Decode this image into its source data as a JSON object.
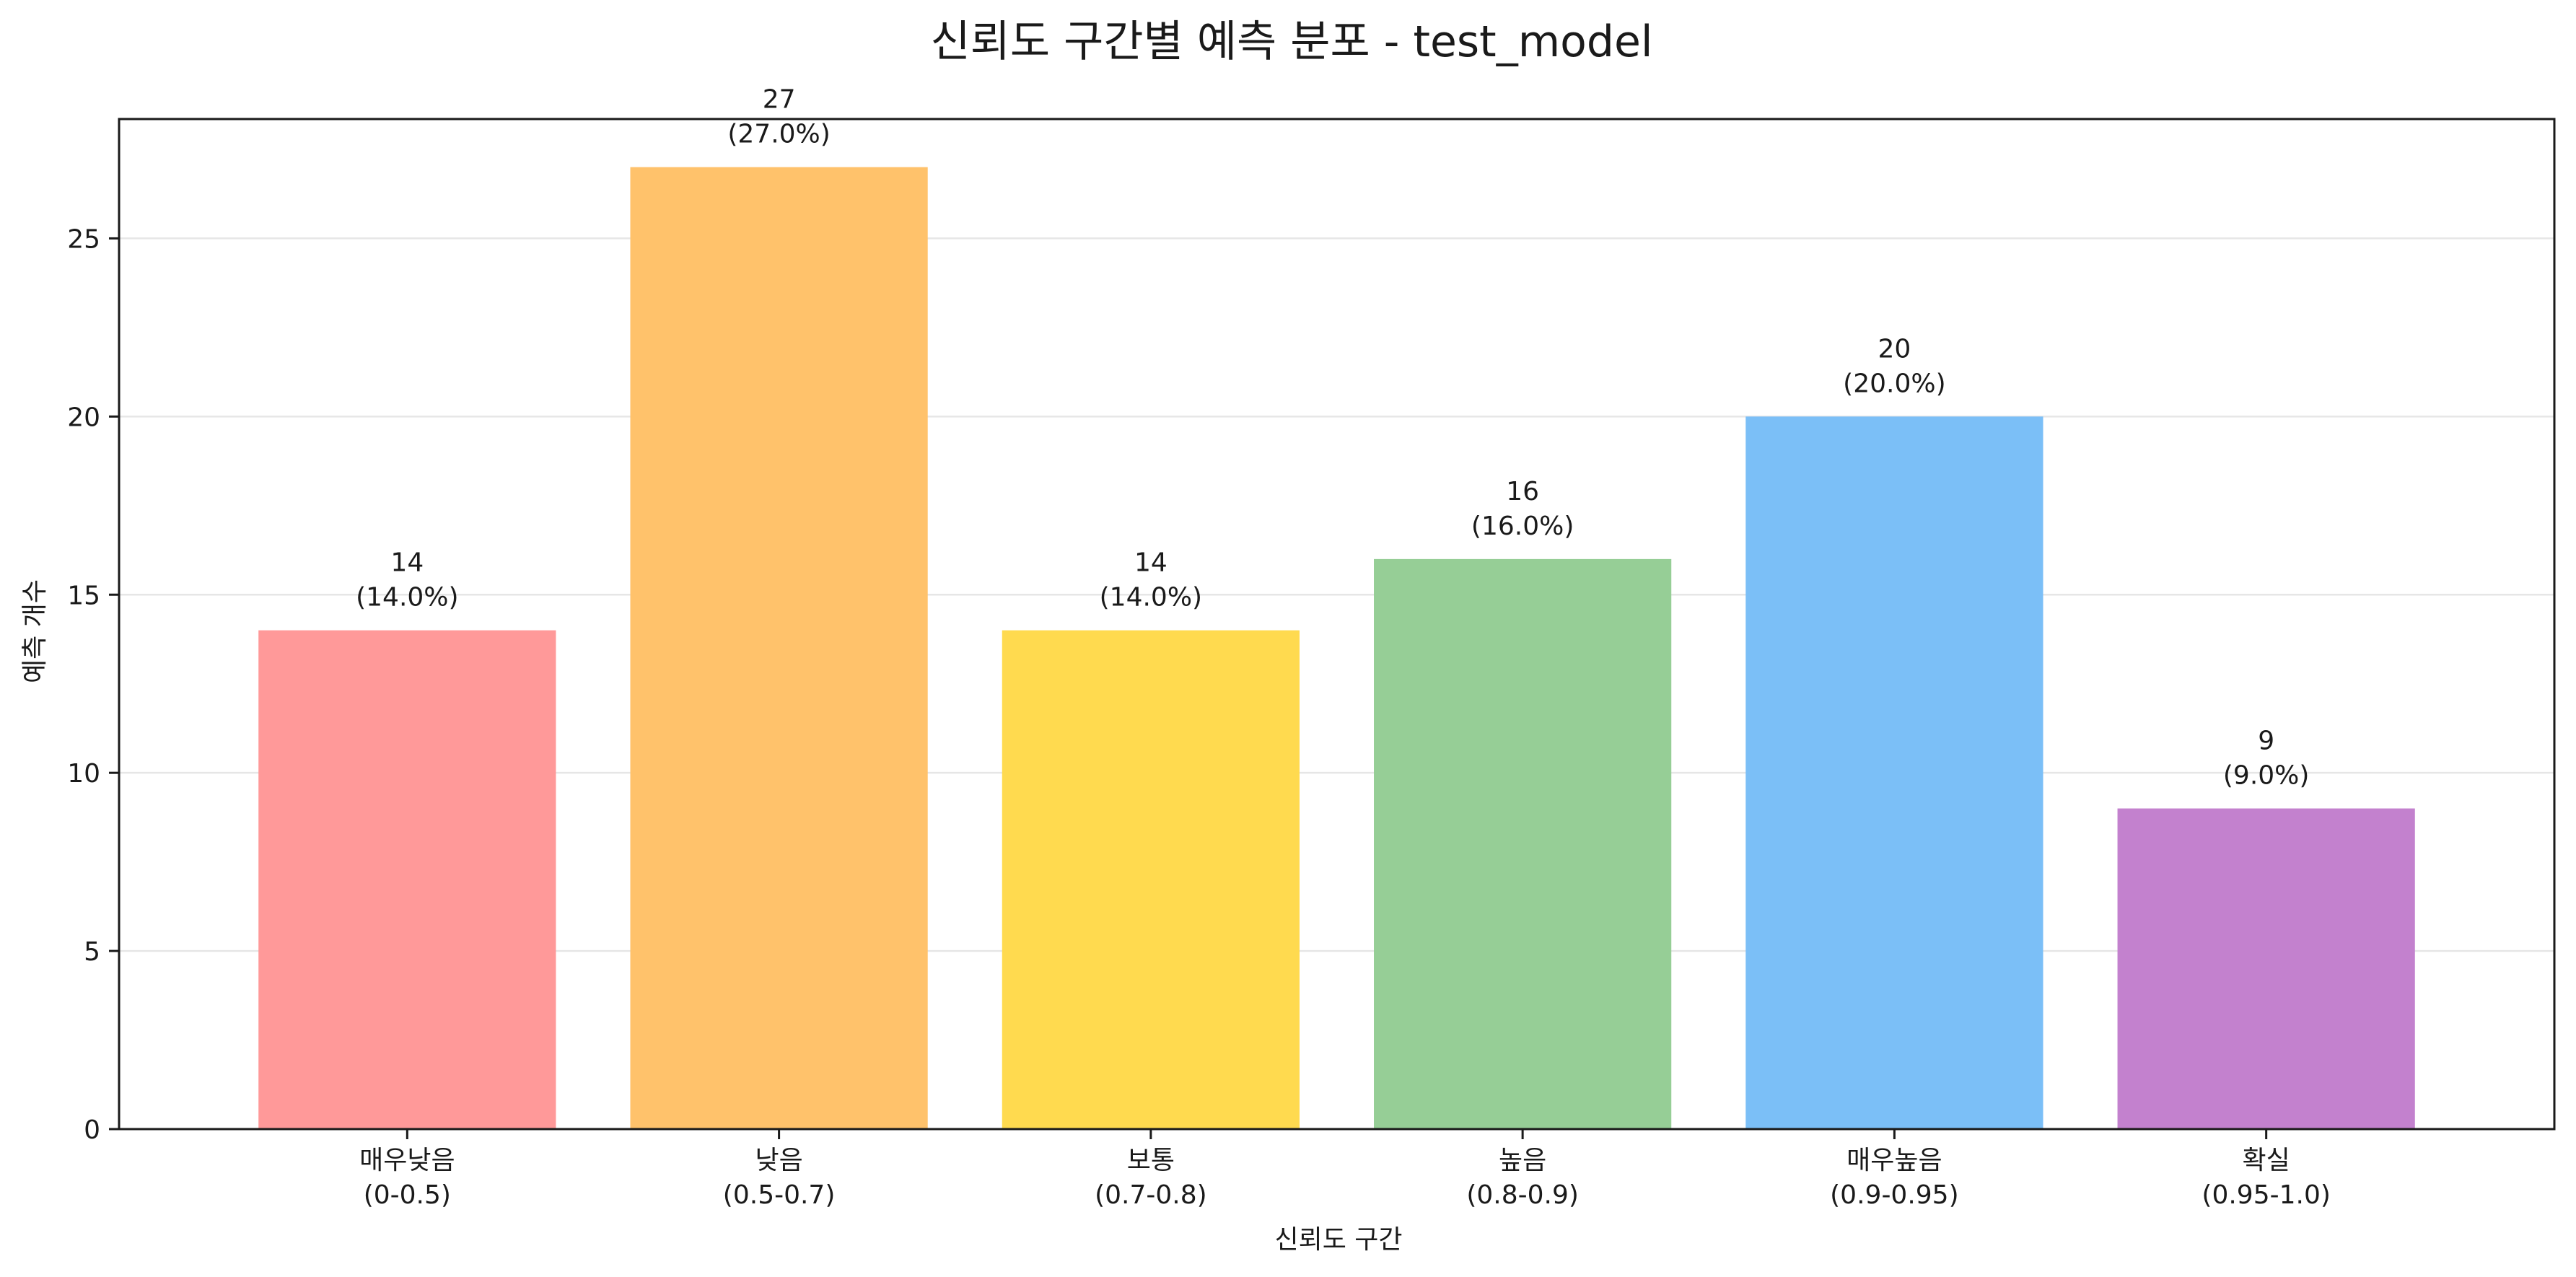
{
  "chart_data": {
    "type": "bar",
    "title": "신뢰도 구간별 예측 분포 - test_model",
    "xlabel": "신뢰도 구간",
    "ylabel": "예측 개수",
    "ylim": [
      0,
      28.35
    ],
    "yticks": [
      0,
      5,
      10,
      15,
      20,
      25
    ],
    "grid": "y",
    "categories": [
      {
        "name": "매우낮음",
        "range": "(0-0.5)"
      },
      {
        "name": "낮음",
        "range": "(0.5-0.7)"
      },
      {
        "name": "보통",
        "range": "(0.7-0.8)"
      },
      {
        "name": "높음",
        "range": "(0.8-0.9)"
      },
      {
        "name": "매우높음",
        "range": "(0.9-0.95)"
      },
      {
        "name": "확실",
        "range": "(0.95-1.0)"
      }
    ],
    "values": [
      14,
      27,
      14,
      16,
      20,
      9
    ],
    "value_labels": [
      "14",
      "27",
      "14",
      "16",
      "20",
      "9"
    ],
    "percent_labels": [
      "(14.0%)",
      "(27.0%)",
      "(14.0%)",
      "(16.0%)",
      "(20.0%)",
      "(9.0%)"
    ],
    "colors": [
      "#ff9999",
      "#ffc26b",
      "#ffda4f",
      "#96ce96",
      "#7bbff7",
      "#c381ce"
    ]
  }
}
